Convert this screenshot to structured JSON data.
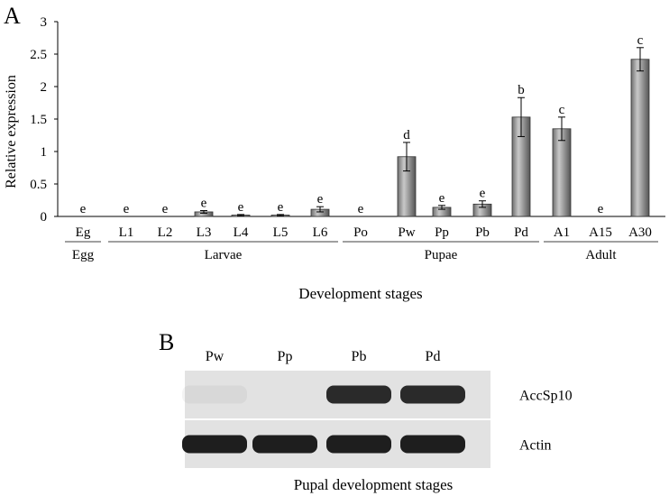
{
  "panel_a_label": "A",
  "panel_b_label": "B",
  "chart_data": {
    "type": "bar",
    "ylabel": "Relative expression",
    "xlabel": "Development stages",
    "ylim": [
      0,
      3
    ],
    "yticks": [
      "0",
      "0.5",
      "1",
      "1.5",
      "2",
      "2.5",
      "3"
    ],
    "grid": false,
    "categories": [
      "Eg",
      "L1",
      "L2",
      "L3",
      "L4",
      "L5",
      "L6",
      "Po",
      "Pw",
      "Pp",
      "Pb",
      "Pd",
      "A1",
      "A15",
      "A30"
    ],
    "series": [
      {
        "values": [
          0,
          0,
          0,
          0.07,
          0.02,
          0.02,
          0.11,
          0,
          0.92,
          0.14,
          0.19,
          1.53,
          1.35,
          0,
          2.42
        ],
        "errors": [
          0,
          0,
          0,
          0.02,
          0.01,
          0.01,
          0.04,
          0,
          0.22,
          0.03,
          0.05,
          0.3,
          0.18,
          0,
          0.18
        ],
        "significance": [
          "e",
          "e",
          "e",
          "e",
          "e",
          "e",
          "e",
          "e",
          "d",
          "e",
          "e",
          "b",
          "c",
          "e",
          "c"
        ]
      }
    ],
    "groups": [
      {
        "label": "Egg",
        "members": [
          "Eg"
        ]
      },
      {
        "label": "Larvae",
        "members": [
          "L1",
          "L2",
          "L3",
          "L4",
          "L5",
          "L6"
        ]
      },
      {
        "label": "Pupae",
        "members": [
          "Po",
          "Pw",
          "Pp",
          "Pb",
          "Pd"
        ]
      },
      {
        "label": "Adult",
        "members": [
          "A1",
          "A15",
          "A30"
        ]
      }
    ]
  },
  "blot": {
    "lanes": [
      "Pw",
      "Pp",
      "Pb",
      "Pd"
    ],
    "rows": [
      {
        "label": "AccSp10",
        "intensity": [
          0.05,
          0.0,
          1.0,
          1.0
        ]
      },
      {
        "label": "Actin",
        "intensity": [
          1.0,
          1.0,
          1.0,
          1.0
        ]
      }
    ],
    "xlabel": "Pupal development stages"
  }
}
